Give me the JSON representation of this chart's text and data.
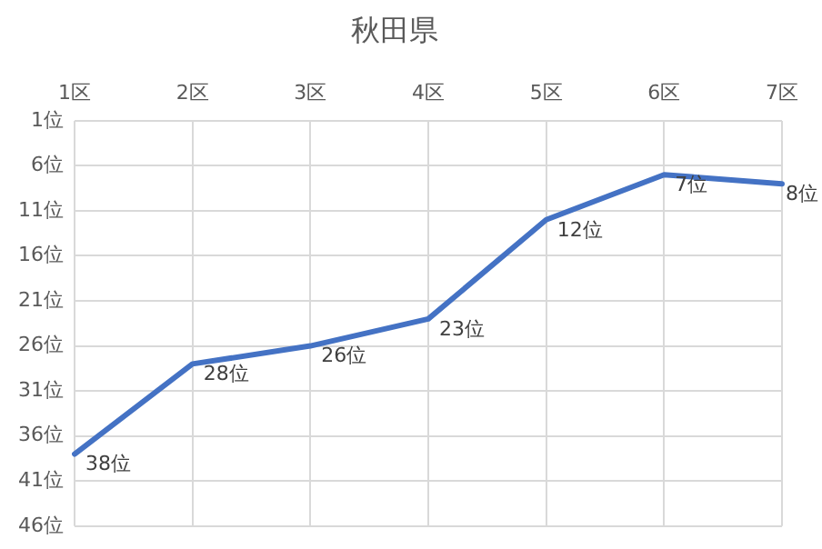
{
  "chart_data": {
    "type": "line",
    "title": "秋田県",
    "categories": [
      "1区",
      "2区",
      "3区",
      "4区",
      "5区",
      "6区",
      "7区"
    ],
    "series": [
      {
        "color": "#4472c4",
        "values": [
          38,
          28,
          26,
          23,
          12,
          7,
          8
        ],
        "value_labels": [
          "38位",
          "28位",
          "26位",
          "23位",
          "12位",
          "7位",
          "8位"
        ]
      }
    ],
    "ylim": [
      46,
      1
    ],
    "yticks": [
      {
        "value": 1,
        "label": "1位"
      },
      {
        "value": 6,
        "label": "6位"
      },
      {
        "value": 11,
        "label": "11位"
      },
      {
        "value": 16,
        "label": "16位"
      },
      {
        "value": 21,
        "label": "21位"
      },
      {
        "value": 26,
        "label": "26位"
      },
      {
        "value": 31,
        "label": "31位"
      },
      {
        "value": 36,
        "label": "36位"
      },
      {
        "value": 41,
        "label": "41位"
      },
      {
        "value": 46,
        "label": "46位"
      }
    ],
    "grid": true,
    "legend": false,
    "marker": "none",
    "line_style": "solid"
  }
}
